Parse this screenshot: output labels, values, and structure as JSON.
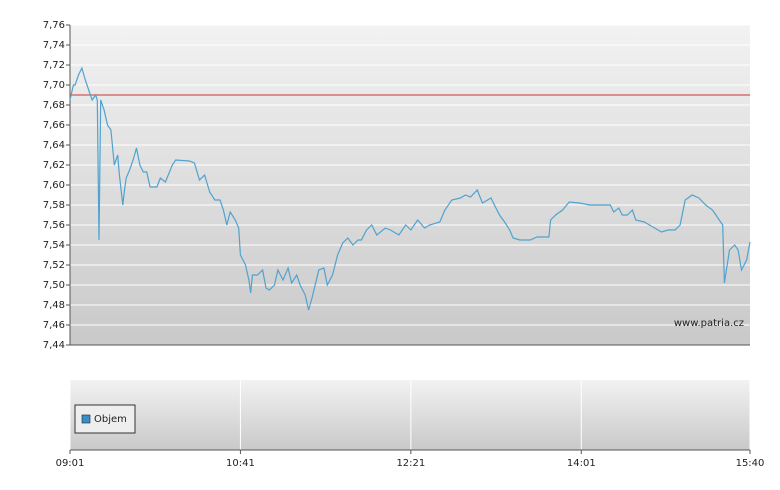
{
  "chart_data": [
    {
      "type": "line",
      "xlim": [
        "09:01",
        "15:40"
      ],
      "ylim": [
        7.44,
        7.76
      ],
      "yticks": [
        {
          "value": 7.44,
          "label": "7,44"
        },
        {
          "value": 7.46,
          "label": "7,46"
        },
        {
          "value": 7.48,
          "label": "7,48"
        },
        {
          "value": 7.5,
          "label": "7,50"
        },
        {
          "value": 7.52,
          "label": "7,52"
        },
        {
          "value": 7.54,
          "label": "7,54"
        },
        {
          "value": 7.56,
          "label": "7,56"
        },
        {
          "value": 7.58,
          "label": "7,58"
        },
        {
          "value": 7.6,
          "label": "7,60"
        },
        {
          "value": 7.62,
          "label": "7,62"
        },
        {
          "value": 7.64,
          "label": "7,64"
        },
        {
          "value": 7.66,
          "label": "7,66"
        },
        {
          "value": 7.68,
          "label": "7,68"
        },
        {
          "value": 7.7,
          "label": "7,70"
        },
        {
          "value": 7.72,
          "label": "7,72"
        },
        {
          "value": 7.74,
          "label": "7,74"
        },
        {
          "value": 7.76,
          "label": "7,76"
        }
      ],
      "grid": true,
      "reference_line": 7.69,
      "reference_color": "#cc3333",
      "annotation": "www.patria.cz",
      "color": "#4fa3cf",
      "x": [
        "09:01",
        "09:03",
        "09:04",
        "09:06",
        "09:08",
        "09:10",
        "09:12",
        "09:14",
        "09:16",
        "09:17",
        "09:18",
        "09:19",
        "09:21",
        "09:23",
        "09:25",
        "09:27",
        "09:29",
        "09:30",
        "09:32",
        "09:33",
        "09:34",
        "09:36",
        "09:38",
        "09:40",
        "09:42",
        "09:44",
        "09:46",
        "09:48",
        "09:52",
        "09:54",
        "09:57",
        "10:01",
        "10:03",
        "10:11",
        "10:14",
        "10:17",
        "10:20",
        "10:23",
        "10:26",
        "10:29",
        "10:31",
        "10:33",
        "10:35",
        "10:38",
        "10:40",
        "10:41",
        "10:44",
        "10:46",
        "10:47",
        "10:48",
        "10:51",
        "10:54",
        "10:56",
        "10:58",
        "11:01",
        "11:03",
        "11:06",
        "11:09",
        "11:11",
        "11:14",
        "11:16",
        "11:19",
        "11:21",
        "11:23",
        "11:27",
        "11:30",
        "11:32",
        "11:35",
        "11:38",
        "11:41",
        "11:44",
        "11:47",
        "11:50",
        "11:52",
        "11:55",
        "11:58",
        "12:01",
        "12:06",
        "12:09",
        "12:14",
        "12:18",
        "12:21",
        "12:25",
        "12:29",
        "12:32",
        "12:38",
        "12:41",
        "12:45",
        "12:50",
        "12:53",
        "12:56",
        "13:00",
        "13:03",
        "13:08",
        "13:10",
        "13:13",
        "13:16",
        "13:19",
        "13:21",
        "13:25",
        "13:31",
        "13:35",
        "13:42",
        "13:43",
        "13:46",
        "13:50",
        "13:54",
        "14:00",
        "14:06",
        "14:12",
        "14:18",
        "14:20",
        "14:23",
        "14:25",
        "14:28",
        "14:31",
        "14:33",
        "14:38",
        "14:41",
        "14:44",
        "14:48",
        "14:52",
        "14:56",
        "14:59",
        "15:02",
        "15:06",
        "15:10",
        "15:14",
        "15:18",
        "15:22",
        "15:24",
        "15:25",
        "15:28",
        "15:31",
        "15:33",
        "15:35",
        "15:38",
        "15:40"
      ],
      "values": [
        7.685,
        7.7,
        7.7,
        7.71,
        7.717,
        7.705,
        7.695,
        7.685,
        7.69,
        7.685,
        7.545,
        7.685,
        7.675,
        7.66,
        7.655,
        7.62,
        7.63,
        7.61,
        7.58,
        7.595,
        7.607,
        7.615,
        7.625,
        7.637,
        7.62,
        7.613,
        7.613,
        7.598,
        7.598,
        7.607,
        7.603,
        7.62,
        7.625,
        7.624,
        7.622,
        7.605,
        7.61,
        7.593,
        7.585,
        7.585,
        7.575,
        7.56,
        7.573,
        7.565,
        7.557,
        7.53,
        7.52,
        7.505,
        7.492,
        7.51,
        7.51,
        7.515,
        7.497,
        7.495,
        7.5,
        7.515,
        7.505,
        7.517,
        7.502,
        7.51,
        7.5,
        7.49,
        7.475,
        7.487,
        7.515,
        7.517,
        7.5,
        7.51,
        7.53,
        7.542,
        7.547,
        7.54,
        7.545,
        7.545,
        7.555,
        7.56,
        7.55,
        7.557,
        7.555,
        7.55,
        7.56,
        7.555,
        7.565,
        7.557,
        7.56,
        7.563,
        7.575,
        7.585,
        7.587,
        7.59,
        7.588,
        7.595,
        7.582,
        7.587,
        7.58,
        7.57,
        7.563,
        7.555,
        7.547,
        7.545,
        7.545,
        7.548,
        7.548,
        7.565,
        7.57,
        7.575,
        7.583,
        7.582,
        7.58,
        7.58,
        7.58,
        7.573,
        7.577,
        7.57,
        7.57,
        7.575,
        7.565,
        7.563,
        7.56,
        7.557,
        7.553,
        7.555,
        7.555,
        7.56,
        7.585,
        7.59,
        7.587,
        7.58,
        7.575,
        7.565,
        7.56,
        7.502,
        7.535,
        7.54,
        7.535,
        7.515,
        7.525,
        7.543
      ]
    },
    {
      "type": "bar",
      "xlim": [
        "09:01",
        "15:40"
      ],
      "xticks": [
        "09:01",
        "10:41",
        "12:21",
        "14:01",
        "15:40"
      ],
      "grid": true,
      "legend": "upper-left",
      "series": [
        {
          "name": "Objem",
          "color": "#3a8fc8",
          "values": []
        }
      ]
    }
  ]
}
